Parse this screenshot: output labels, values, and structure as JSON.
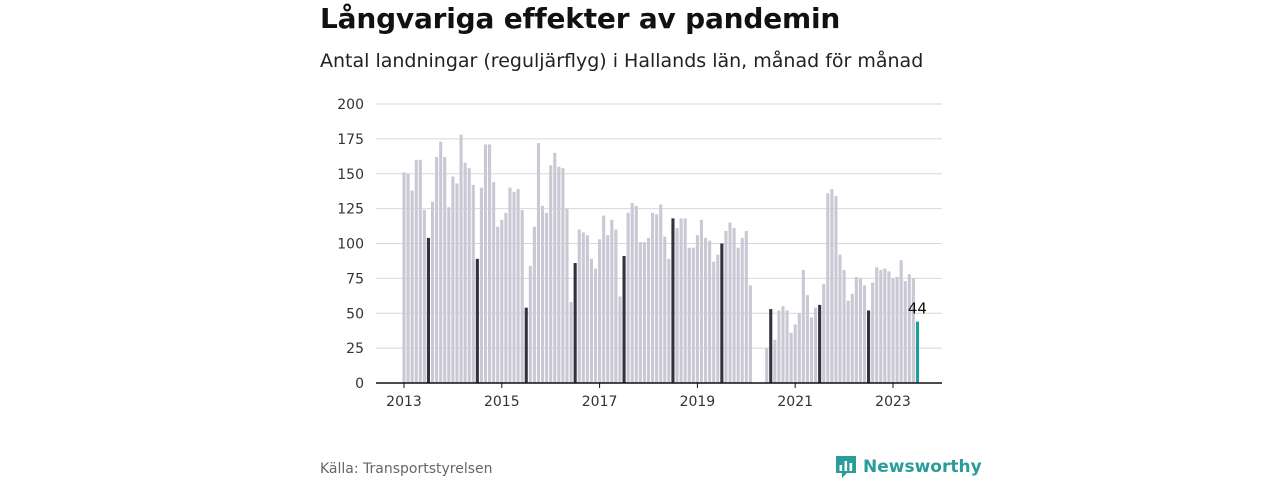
{
  "header": {
    "title": "Långvariga effekter av pandemin",
    "subtitle": "Antal landningar (reguljärflyg) i Hallands län, månad för månad"
  },
  "footer": {
    "source": "Källa: Transportstyrelsen",
    "brand": "Newsworthy"
  },
  "colors": {
    "bar": "#c9c8d4",
    "january_bar": "#33313f",
    "latest_bar": "#1a9e96",
    "grid": "#d8d8d8",
    "axis": "#111111",
    "brand": "#2a9d9a"
  },
  "icons": {
    "brand_logo": "bar-chart-speech-bubble-icon"
  },
  "chart_data": {
    "type": "bar",
    "title": "Långvariga effekter av pandemin",
    "subtitle": "Antal landningar (reguljärflyg) i Hallands län, månad för månad",
    "xlabel": "",
    "ylabel": "",
    "ylim": [
      0,
      200
    ],
    "y_ticks": [
      0,
      25,
      50,
      75,
      100,
      125,
      150,
      175,
      200
    ],
    "x_ticks": [
      "2013",
      "2015",
      "2017",
      "2019",
      "2021",
      "2023"
    ],
    "grid": "horizontal",
    "start": "2013-01",
    "end": "2023-07",
    "highlight": {
      "month": "2023-07",
      "label": "44"
    },
    "series": [
      {
        "values": [
          151,
          150,
          138,
          160,
          160,
          124,
          104,
          130,
          162,
          173,
          162,
          126,
          148,
          143,
          178,
          158,
          154,
          142,
          89,
          140,
          171,
          171,
          144,
          112,
          117,
          122,
          140,
          137,
          139,
          124,
          54,
          84,
          112,
          172,
          127,
          122,
          156,
          165,
          155,
          154,
          125,
          58,
          86,
          110,
          108,
          106,
          89,
          82,
          103,
          120,
          106,
          117,
          110,
          62,
          91,
          122,
          129,
          127,
          101,
          101,
          104,
          122,
          121,
          128,
          105,
          89,
          118,
          111,
          118,
          118,
          97,
          97,
          106,
          117,
          104,
          102,
          87,
          92,
          100,
          109,
          115,
          111,
          97,
          104,
          109,
          70,
          0,
          0,
          0,
          25,
          53,
          31,
          52,
          55,
          52,
          36,
          42,
          50,
          81,
          63,
          47,
          54,
          56,
          71,
          136,
          139,
          134,
          92,
          81,
          59,
          64,
          76,
          75,
          70,
          52,
          72,
          83,
          81,
          82,
          80,
          75,
          76,
          88,
          73,
          78,
          75,
          44
        ]
      }
    ]
  }
}
